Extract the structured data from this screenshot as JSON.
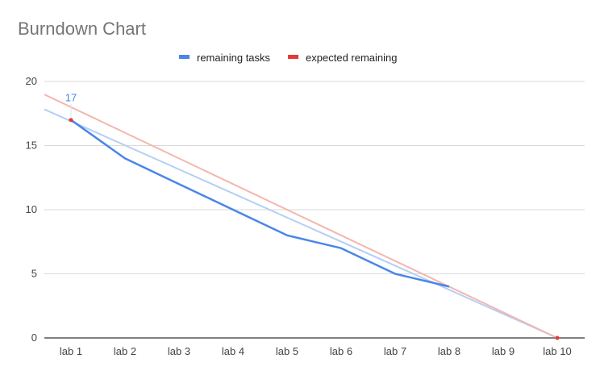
{
  "chart_data": {
    "type": "line",
    "title": "Burndown Chart",
    "xlabel": "",
    "ylabel": "",
    "categories": [
      "lab 1",
      "lab 2",
      "lab 3",
      "lab 4",
      "lab 5",
      "lab 6",
      "lab 7",
      "lab 8",
      "lab 9",
      "lab 10"
    ],
    "ylim": [
      0,
      20
    ],
    "yticks": [
      0,
      5,
      10,
      15,
      20
    ],
    "grid": true,
    "legend_position": "top",
    "series": [
      {
        "name": "remaining tasks",
        "color": "#4a86e8",
        "values": [
          17,
          14,
          12,
          10,
          8,
          7,
          5,
          4,
          null,
          null
        ],
        "trendline": {
          "color": "#b4cff5",
          "start": [
            1,
            16.9
          ],
          "end": [
            10,
            0
          ]
        }
      },
      {
        "name": "expected remaining",
        "color": "#e53935",
        "values": [
          17,
          null,
          null,
          null,
          null,
          null,
          null,
          null,
          null,
          0
        ],
        "trendline": {
          "color": "#f4b6ad",
          "start": [
            1,
            18
          ],
          "end": [
            10,
            0
          ]
        }
      }
    ],
    "annotations": [
      {
        "series": 0,
        "index": 0,
        "text": "17",
        "color": "#4a86e8"
      }
    ]
  }
}
